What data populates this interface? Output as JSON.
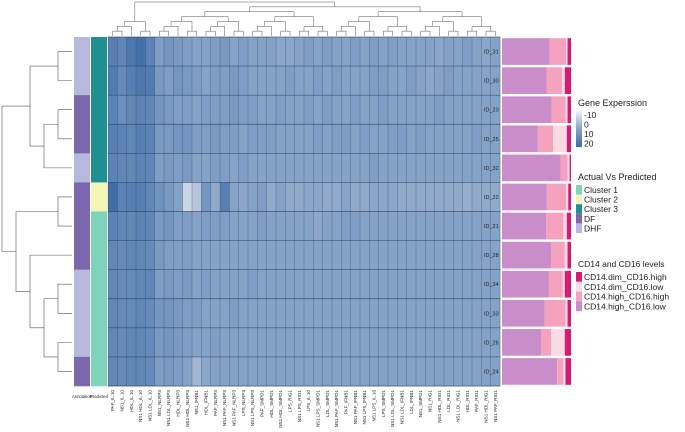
{
  "chart_data": {
    "type": "heatmap",
    "title": "",
    "rows": [
      "ID_31",
      "ID_30",
      "ID_23",
      "ID_25",
      "ID_32",
      "ID_22",
      "ID_21",
      "ID_28",
      "ID_34",
      "ID_33",
      "ID_26",
      "ID_24"
    ],
    "columns": [
      "PAF_IL 10",
      "NS1_IL 10",
      "HDL_IL 10",
      "NS1 HDL_IL 10",
      "NS1 LDL_IL 10",
      "NS1_NLRP3",
      "NS1 LDL_NLRP3",
      "HDL_NLRP3",
      "NS1 HDL_NLRP3",
      "NS1_IFNB1",
      "HDL_IFNB1",
      "PAF_NLRP3",
      "NS1 PAF_NLRP3",
      "NS1 PAF_NLRP3",
      "LPS_NLRP3",
      "NS1 LPS_NLRP3",
      "PAF_SMPD1",
      "HDL_SMPD1",
      "NS1 HDL_SMPD1",
      "LPS_RIG1",
      "NS1 LPS_RIG1",
      "LPS_IL 10",
      "NS1 LPS_SMPD1",
      "LDL_SMPD1",
      "NS1 PAF_SMPD1",
      "PAF_IFNB1",
      "NS1 PAF_IFNB1",
      "NS1 LPS_IFNB1",
      "NS1 LPS_IL 10",
      "LPS_SMPD1",
      "NS1 LDL_SMPD1",
      "NS1 LDL_IFNB1",
      "LDL_IFNB1",
      "NS1_SMPD1",
      "NS1_RIG1",
      "NS1 HDL_RIG1",
      "LDL_RIG1",
      "NS1 LDL_RIG1",
      "HDL_RIG1",
      "PAF_RIG1",
      "NS1 HDL_RIG1",
      "NS1 PAF_RIG1"
    ],
    "values": [
      [
        14,
        12,
        16,
        18,
        13,
        6,
        8,
        7,
        6,
        5,
        5,
        6,
        7,
        5,
        6,
        5,
        5,
        5,
        4,
        4,
        5,
        6,
        5,
        6,
        5,
        5,
        6,
        5,
        6,
        5,
        6,
        5,
        5,
        5,
        5,
        4,
        5,
        5,
        6,
        5,
        4,
        5
      ],
      [
        15,
        11,
        14,
        16,
        15,
        7,
        6,
        8,
        7,
        6,
        5,
        6,
        6,
        7,
        6,
        5,
        5,
        5,
        5,
        6,
        5,
        5,
        6,
        5,
        6,
        5,
        5,
        5,
        6,
        6,
        5,
        5,
        6,
        5,
        4,
        5,
        6,
        5,
        5,
        5,
        5,
        5
      ],
      [
        13,
        10,
        12,
        13,
        12,
        8,
        7,
        6,
        6,
        5,
        6,
        6,
        6,
        7,
        6,
        6,
        5,
        5,
        6,
        5,
        5,
        6,
        5,
        6,
        5,
        5,
        6,
        5,
        5,
        6,
        5,
        5,
        5,
        5,
        5,
        6,
        5,
        5,
        5,
        5,
        5,
        5
      ],
      [
        14,
        13,
        12,
        14,
        13,
        7,
        7,
        8,
        8,
        6,
        6,
        7,
        6,
        6,
        5,
        6,
        6,
        6,
        5,
        5,
        5,
        5,
        6,
        5,
        6,
        6,
        5,
        6,
        5,
        5,
        6,
        6,
        5,
        6,
        5,
        5,
        5,
        5,
        5,
        6,
        5,
        5
      ],
      [
        13,
        12,
        12,
        13,
        12,
        6,
        7,
        6,
        7,
        5,
        5,
        6,
        6,
        5,
        6,
        5,
        5,
        5,
        5,
        5,
        5,
        5,
        5,
        5,
        5,
        5,
        5,
        5,
        6,
        5,
        5,
        5,
        5,
        5,
        5,
        5,
        5,
        5,
        5,
        5,
        5,
        5
      ],
      [
        19,
        13,
        14,
        14,
        12,
        9,
        7,
        5,
        -6,
        -3,
        8,
        3,
        14,
        5,
        4,
        5,
        6,
        3,
        5,
        3,
        3,
        4,
        4,
        3,
        3,
        5,
        3,
        3,
        4,
        4,
        4,
        3,
        3,
        3,
        3,
        3,
        3,
        3,
        2,
        3,
        3,
        3
      ],
      [
        13,
        12,
        12,
        13,
        12,
        7,
        8,
        6,
        6,
        5,
        6,
        6,
        6,
        5,
        5,
        5,
        6,
        5,
        5,
        5,
        5,
        5,
        4,
        5,
        5,
        6,
        6,
        5,
        5,
        5,
        5,
        5,
        5,
        5,
        5,
        5,
        5,
        5,
        5,
        5,
        5,
        5
      ],
      [
        12,
        11,
        12,
        12,
        11,
        7,
        6,
        6,
        6,
        5,
        5,
        5,
        5,
        5,
        5,
        5,
        5,
        5,
        5,
        5,
        5,
        5,
        5,
        5,
        5,
        5,
        5,
        5,
        5,
        5,
        5,
        5,
        5,
        5,
        5,
        5,
        5,
        5,
        5,
        5,
        5,
        5
      ],
      [
        12,
        11,
        11,
        12,
        12,
        6,
        7,
        6,
        7,
        5,
        6,
        5,
        5,
        5,
        5,
        6,
        5,
        5,
        5,
        5,
        5,
        5,
        5,
        5,
        5,
        5,
        5,
        5,
        5,
        5,
        5,
        5,
        5,
        5,
        5,
        5,
        5,
        5,
        5,
        5,
        5,
        5
      ],
      [
        12,
        11,
        11,
        12,
        11,
        8,
        8,
        7,
        6,
        6,
        5,
        5,
        5,
        6,
        5,
        5,
        5,
        5,
        5,
        5,
        5,
        5,
        5,
        5,
        5,
        5,
        5,
        5,
        5,
        5,
        5,
        5,
        5,
        5,
        5,
        5,
        5,
        5,
        5,
        5,
        5,
        5
      ],
      [
        12,
        11,
        12,
        12,
        11,
        7,
        8,
        7,
        6,
        5,
        5,
        6,
        5,
        5,
        5,
        5,
        5,
        5,
        5,
        5,
        5,
        5,
        5,
        5,
        5,
        5,
        5,
        5,
        5,
        5,
        5,
        5,
        5,
        5,
        5,
        5,
        5,
        5,
        5,
        5,
        5,
        5
      ],
      [
        12,
        11,
        12,
        12,
        11,
        6,
        7,
        6,
        5,
        0,
        4,
        5,
        5,
        5,
        5,
        5,
        5,
        5,
        5,
        5,
        5,
        5,
        5,
        5,
        5,
        5,
        5,
        5,
        5,
        5,
        5,
        5,
        5,
        5,
        5,
        5,
        5,
        5,
        5,
        5,
        5,
        5
      ]
    ],
    "annotation_labels": [
      "Annotation",
      "Predicted"
    ],
    "annotation": [
      "DHF",
      "DHF",
      "DF",
      "DF",
      "DHF",
      "DF",
      "DF",
      "DF",
      "DHF",
      "DHF",
      "DHF",
      "DF"
    ],
    "predicted": [
      "Cluster 3",
      "Cluster 3",
      "Cluster 3",
      "Cluster 3",
      "Cluster 3",
      "Cluster 2",
      "Cluster 1",
      "Cluster 1",
      "Cluster 1",
      "Cluster 1",
      "Cluster 1",
      "Cluster 1"
    ],
    "cd_levels": {
      "categories": [
        "CD14.dim_CD16.high",
        "CD14.dim_CD16.low",
        "CD14.high_CD16.high",
        "CD14.high_CD16.low"
      ],
      "rows": [
        [
          0.05,
          0.02,
          0.24,
          0.69
        ],
        [
          0.09,
          0.04,
          0.22,
          0.65
        ],
        [
          0.05,
          0.03,
          0.2,
          0.72
        ],
        [
          0.06,
          0.2,
          0.22,
          0.52
        ],
        [
          0.02,
          0.03,
          0.1,
          0.85
        ],
        [
          0.04,
          0.03,
          0.28,
          0.65
        ],
        [
          0.06,
          0.05,
          0.25,
          0.64
        ],
        [
          0.05,
          0.04,
          0.2,
          0.71
        ],
        [
          0.09,
          0.03,
          0.2,
          0.68
        ],
        [
          0.05,
          0.03,
          0.3,
          0.62
        ],
        [
          0.09,
          0.2,
          0.14,
          0.57
        ],
        [
          0.08,
          0.03,
          0.09,
          0.8
        ]
      ]
    },
    "legends": {
      "gene_expression": {
        "title": "Gene Experssion",
        "ticks": [
          "-10",
          "0",
          "10",
          "20"
        ],
        "domain": [
          -10,
          20
        ]
      },
      "actual_vs_predicted": {
        "title": "Actual Vs Predicted",
        "entries": [
          "Cluster 1",
          "Cluster 2",
          "Cluster 3",
          "DF",
          "DHF"
        ]
      },
      "cd_levels": {
        "title": "CD14 and CD16 levels",
        "entries": [
          "CD14.dim_CD16.high",
          "CD14.dim_CD16.low",
          "CD14.high_CD16.high",
          "CD14.high_CD16.low"
        ]
      }
    },
    "colors": {
      "heat_low": "#f2f4f8",
      "heat_high": "#3b6aa6",
      "grid": "#2a3a55",
      "Cluster 1": "#7fd3bd",
      "Cluster 2": "#f2f5b4",
      "Cluster 3": "#1f8f93",
      "DF": "#7a67ad",
      "DHF": "#b8b7dc",
      "CD14.dim_CD16.high": "#d61c72",
      "CD14.dim_CD16.low": "#f9dbe4",
      "CD14.high_CD16.high": "#f4a2bd",
      "CD14.high_CD16.low": "#c98dc9"
    },
    "row_dendrogram": {
      "left": [
        0,
        1
      ],
      "right": {
        "left": {
          "left": 2,
          "right": 3
        },
        "right": 4
      },
      "bottom": {
        "left": {
          "left": 5,
          "right": 6
        },
        "right": {
          "left": 7,
          "right": {
            "left": {
              "left": 8,
              "right": 9
            },
            "right": {
              "left": 10,
              "right": 11
            }
          }
        }
      }
    }
  }
}
